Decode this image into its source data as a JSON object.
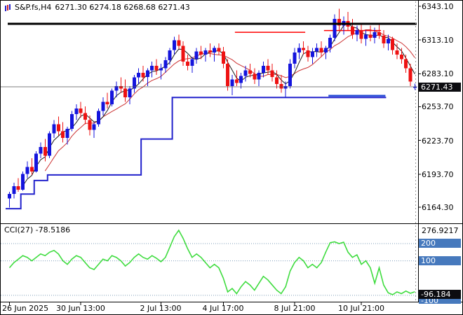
{
  "header": {
    "symbol": "S&P.fs,H4",
    "ohlc": "6271.30 6274.18 6268.68 6271.43"
  },
  "colors": {
    "candle_up": "#1414dd",
    "candle_down": "#ee1212",
    "ma_fast": "#1a1a1a",
    "ma_slow": "#cc3333",
    "step_line": "#2222cc",
    "support_segment": "#2a4fd6",
    "resistance_line": "#ff0000",
    "ceiling_line": "#000000",
    "current_price_line": "#555555",
    "cci_line": "#3fdc3f",
    "level_line": "#7f9db9",
    "level_tag_bg": "#4679bd",
    "current_tag_bg": "#0c0c10"
  },
  "chart_data": {
    "type": "candlestick+line",
    "time_labels": [
      {
        "text": "26 Jun 2025",
        "index": 0
      },
      {
        "text": "30 Jun 13:00",
        "index": 16
      },
      {
        "text": "2 Jul 13:00",
        "index": 34
      },
      {
        "text": "4 Jul 17:00",
        "index": 48
      },
      {
        "text": "8 Jul 21:00",
        "index": 64
      },
      {
        "text": "10 Jul 21:00",
        "index": 79
      }
    ],
    "panels": [
      {
        "type": "candlestick",
        "symbol": "S&P.fs,H4",
        "timeframe": "H4",
        "ylim": [
          6150,
          6348
        ],
        "price_labels": [
          "6343.10",
          "6313.10",
          "6283.10",
          "6253.70",
          "6223.70",
          "6193.70",
          "6164.30"
        ],
        "current_price": 6271.43,
        "current_label": "6271.43",
        "candles": [
          [
            6172,
            6178,
            6164,
            6176
          ],
          [
            6176,
            6186,
            6172,
            6183
          ],
          [
            6183,
            6190,
            6178,
            6180
          ],
          [
            6180,
            6196,
            6179,
            6194
          ],
          [
            6194,
            6205,
            6190,
            6200
          ],
          [
            6200,
            6208,
            6193,
            6196
          ],
          [
            6196,
            6214,
            6195,
            6212
          ],
          [
            6212,
            6222,
            6208,
            6218
          ],
          [
            6218,
            6225,
            6205,
            6210
          ],
          [
            6210,
            6232,
            6208,
            6230
          ],
          [
            6230,
            6242,
            6226,
            6238
          ],
          [
            6238,
            6245,
            6228,
            6232
          ],
          [
            6232,
            6240,
            6222,
            6226
          ],
          [
            6226,
            6236,
            6220,
            6234
          ],
          [
            6234,
            6250,
            6232,
            6247
          ],
          [
            6247,
            6256,
            6242,
            6252
          ],
          [
            6252,
            6258,
            6244,
            6248
          ],
          [
            6248,
            6254,
            6238,
            6242
          ],
          [
            6242,
            6246,
            6228,
            6233
          ],
          [
            6233,
            6240,
            6226,
            6238
          ],
          [
            6238,
            6252,
            6236,
            6250
          ],
          [
            6250,
            6262,
            6246,
            6258
          ],
          [
            6258,
            6266,
            6252,
            6256
          ],
          [
            6256,
            6270,
            6254,
            6268
          ],
          [
            6268,
            6276,
            6262,
            6272
          ],
          [
            6272,
            6280,
            6266,
            6270
          ],
          [
            6270,
            6278,
            6258,
            6262
          ],
          [
            6262,
            6272,
            6256,
            6270
          ],
          [
            6270,
            6282,
            6266,
            6280
          ],
          [
            6280,
            6288,
            6274,
            6284
          ],
          [
            6284,
            6290,
            6276,
            6280
          ],
          [
            6280,
            6288,
            6272,
            6286
          ],
          [
            6286,
            6294,
            6280,
            6290
          ],
          [
            6290,
            6296,
            6282,
            6286
          ],
          [
            6286,
            6292,
            6278,
            6288
          ],
          [
            6288,
            6298,
            6284,
            6295
          ],
          [
            6295,
            6306,
            6291,
            6304
          ],
          [
            6304,
            6316,
            6300,
            6313
          ],
          [
            6313,
            6318,
            6305,
            6308
          ],
          [
            6308,
            6312,
            6290,
            6294
          ],
          [
            6294,
            6300,
            6286,
            6290
          ],
          [
            6290,
            6298,
            6284,
            6296
          ],
          [
            6296,
            6306,
            6292,
            6303
          ],
          [
            6303,
            6308,
            6296,
            6300
          ],
          [
            6300,
            6306,
            6294,
            6304
          ],
          [
            6304,
            6310,
            6298,
            6302
          ],
          [
            6302,
            6308,
            6294,
            6306
          ],
          [
            6306,
            6310,
            6300,
            6303
          ],
          [
            6303,
            6307,
            6288,
            6292
          ],
          [
            6292,
            6296,
            6268,
            6272
          ],
          [
            6272,
            6282,
            6264,
            6278
          ],
          [
            6278,
            6286,
            6272,
            6275
          ],
          [
            6275,
            6284,
            6270,
            6281
          ],
          [
            6281,
            6290,
            6276,
            6286
          ],
          [
            6286,
            6292,
            6280,
            6283
          ],
          [
            6283,
            6288,
            6274,
            6278
          ],
          [
            6278,
            6286,
            6272,
            6284
          ],
          [
            6284,
            6294,
            6280,
            6290
          ],
          [
            6290,
            6296,
            6282,
            6286
          ],
          [
            6286,
            6292,
            6276,
            6280
          ],
          [
            6280,
            6286,
            6270,
            6274
          ],
          [
            6274,
            6282,
            6266,
            6270
          ],
          [
            6270,
            6276,
            6262,
            6272
          ],
          [
            6272,
            6296,
            6270,
            6292
          ],
          [
            6292,
            6306,
            6288,
            6302
          ],
          [
            6302,
            6310,
            6296,
            6306
          ],
          [
            6306,
            6312,
            6300,
            6304
          ],
          [
            6304,
            6308,
            6294,
            6298
          ],
          [
            6298,
            6306,
            6292,
            6303
          ],
          [
            6303,
            6310,
            6298,
            6306
          ],
          [
            6306,
            6312,
            6298,
            6302
          ],
          [
            6302,
            6308,
            6296,
            6306
          ],
          [
            6306,
            6318,
            6302,
            6315
          ],
          [
            6315,
            6336,
            6312,
            6332
          ],
          [
            6332,
            6341,
            6322,
            6326
          ],
          [
            6326,
            6334,
            6318,
            6330
          ],
          [
            6330,
            6338,
            6322,
            6325
          ],
          [
            6325,
            6332,
            6314,
            6318
          ],
          [
            6318,
            6326,
            6312,
            6322
          ],
          [
            6322,
            6328,
            6310,
            6314
          ],
          [
            6314,
            6322,
            6308,
            6318
          ],
          [
            6318,
            6326,
            6312,
            6315
          ],
          [
            6315,
            6324,
            6310,
            6320
          ],
          [
            6320,
            6328,
            6314,
            6317
          ],
          [
            6317,
            6322,
            6306,
            6310
          ],
          [
            6310,
            6318,
            6304,
            6314
          ],
          [
            6314,
            6316,
            6300,
            6304
          ],
          [
            6304,
            6310,
            6296,
            6300
          ],
          [
            6300,
            6306,
            6292,
            6296
          ],
          [
            6296,
            6300,
            6284,
            6288
          ],
          [
            6288,
            6292,
            6272,
            6276
          ],
          [
            6271.3,
            6274.18,
            6268.68,
            6271.43
          ]
        ],
        "overlays": {
          "ma_fast_period": 4,
          "ma_slow_period": 9,
          "step_line": [
            {
              "from": 0,
              "to": 2,
              "price": 6163
            },
            {
              "from": 3,
              "to": 5,
              "price": 6176
            },
            {
              "from": 6,
              "to": 8,
              "price": 6188
            },
            {
              "from": 9,
              "to": 29,
              "price": 6193
            },
            {
              "from": 30,
              "to": 36,
              "price": 6225
            },
            {
              "from": 37,
              "to": 84,
              "price": 6262
            }
          ],
          "hlines": [
            {
              "price": 6327.5,
              "from": 0,
              "to": 91,
              "colorKey": "ceiling_line",
              "width": 3,
              "above": true
            },
            {
              "price": 6320,
              "from": 51,
              "to": 66,
              "colorKey": "resistance_line",
              "width": 1.5,
              "above": false
            },
            {
              "price": 6321.5,
              "from": 71,
              "to": 83,
              "colorKey": "resistance_line",
              "width": 1.5,
              "above": false
            },
            {
              "price": 6263.5,
              "from": 72,
              "to": 84,
              "colorKey": "support_segment",
              "width": 2.5,
              "above": true
            }
          ],
          "current_price": 6271.43
        }
      },
      {
        "type": "line",
        "name": "CCI(27)",
        "label": "CCI(27) -78.5186",
        "current": -78.5186,
        "max_label": "276.9217",
        "min_label": "-96.184",
        "levels": [
          200,
          100,
          -100
        ],
        "values": [
          60,
          90,
          110,
          130,
          120,
          100,
          120,
          140,
          130,
          150,
          160,
          140,
          100,
          80,
          110,
          130,
          120,
          90,
          60,
          50,
          80,
          110,
          100,
          130,
          120,
          100,
          70,
          90,
          120,
          140,
          120,
          110,
          130,
          115,
          95,
          120,
          180,
          240,
          276.9217,
          230,
          170,
          120,
          140,
          120,
          90,
          60,
          80,
          60,
          0,
          -80,
          -60,
          -90,
          -50,
          -20,
          -40,
          -70,
          -30,
          10,
          -10,
          -40,
          -70,
          -90,
          -50,
          40,
          90,
          120,
          100,
          60,
          80,
          60,
          90,
          150,
          205,
          210,
          200,
          208,
          150,
          120,
          135,
          80,
          100,
          60,
          -30,
          60,
          -40,
          -85,
          -96.184,
          -80,
          -90,
          -75,
          -88,
          -78.5186
        ]
      }
    ]
  }
}
